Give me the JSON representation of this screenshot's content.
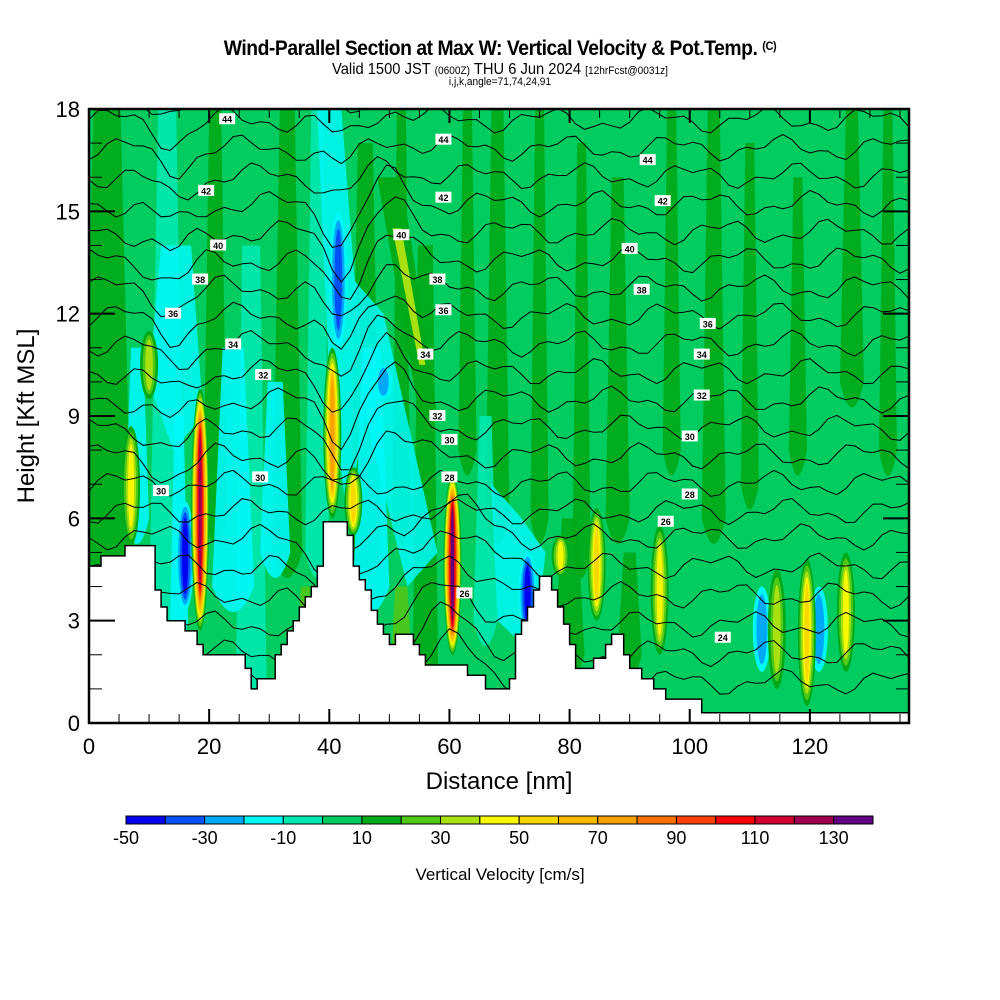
{
  "header": {
    "title": "Wind-Parallel Section at Max W: Vertical Velocity & Pot.Temp.",
    "copyright": "(C)",
    "valid_prefix": "Valid 1500 JST",
    "valid_utc": "(0600Z)",
    "valid_date": "THU 6 Jun 2024",
    "forecast": "[12hrFcst@0031z]",
    "indices": "i,j,k,angle=71,74,24,91"
  },
  "chart_data": {
    "type": "heatmap",
    "title": "Wind-Parallel Section at Max W: Vertical Velocity & Pot.Temp.",
    "xlabel": "Distance [nm]",
    "ylabel": "Height [Kft MSL]",
    "xlim": [
      0,
      136.5
    ],
    "ylim": [
      0,
      18
    ],
    "x_ticks": [
      "0",
      "20",
      "40",
      "60",
      "80",
      "100",
      "120"
    ],
    "x_tick_values": [
      0,
      20,
      40,
      60,
      80,
      100,
      120
    ],
    "y_ticks": [
      "0",
      "3",
      "6",
      "9",
      "12",
      "15",
      "18"
    ],
    "y_tick_values": [
      0,
      3,
      6,
      9,
      12,
      15,
      18
    ],
    "colorbar": {
      "title": "Vertical Velocity [cm/s]",
      "bounds": [
        -50,
        140
      ],
      "step": 10,
      "tick_labels": [
        "-50",
        "-30",
        "-10",
        "10",
        "30",
        "50",
        "70",
        "90",
        "110",
        "130"
      ],
      "tick_values": [
        -50,
        -30,
        -10,
        10,
        30,
        50,
        70,
        90,
        110,
        130
      ],
      "colors": [
        "#0000f0",
        "#0050f8",
        "#00a8f8",
        "#00f8f8",
        "#00e8b0",
        "#00cc60",
        "#00aa18",
        "#50c818",
        "#a8e010",
        "#f8f800",
        "#f8d800",
        "#f8b800",
        "#f8a000",
        "#f87000",
        "#f84000",
        "#f80000",
        "#d00030",
        "#a00050",
        "#600080"
      ]
    },
    "terrain_kft": [
      [
        0,
        4.6
      ],
      [
        2,
        4.6
      ],
      [
        2,
        4.9
      ],
      [
        6,
        4.9
      ],
      [
        6,
        5.2
      ],
      [
        11,
        5.2
      ],
      [
        11,
        3.9
      ],
      [
        12,
        3.9
      ],
      [
        12,
        3.4
      ],
      [
        13,
        3.4
      ],
      [
        13,
        3.0
      ],
      [
        16,
        3.0
      ],
      [
        16,
        2.7
      ],
      [
        18,
        2.7
      ],
      [
        18,
        2.3
      ],
      [
        19,
        2.3
      ],
      [
        19,
        2.0
      ],
      [
        26,
        2.0
      ],
      [
        26,
        1.6
      ],
      [
        27,
        1.6
      ],
      [
        27,
        1.0
      ],
      [
        28,
        1.0
      ],
      [
        28,
        1.3
      ],
      [
        31,
        1.3
      ],
      [
        31,
        2.0
      ],
      [
        32,
        2.0
      ],
      [
        32,
        2.3
      ],
      [
        33,
        2.3
      ],
      [
        33,
        2.7
      ],
      [
        34,
        2.7
      ],
      [
        34,
        3.0
      ],
      [
        35,
        3.0
      ],
      [
        35,
        3.4
      ],
      [
        36,
        3.4
      ],
      [
        36,
        3.7
      ],
      [
        37,
        3.7
      ],
      [
        37,
        4.0
      ],
      [
        38,
        4.0
      ],
      [
        38,
        4.6
      ],
      [
        39,
        4.6
      ],
      [
        39,
        5.9
      ],
      [
        43,
        5.9
      ],
      [
        43,
        5.5
      ],
      [
        44,
        5.5
      ],
      [
        44,
        4.6
      ],
      [
        45,
        4.6
      ],
      [
        45,
        4.2
      ],
      [
        46,
        4.2
      ],
      [
        46,
        3.9
      ],
      [
        47,
        3.9
      ],
      [
        47,
        3.3
      ],
      [
        48,
        3.3
      ],
      [
        48,
        2.9
      ],
      [
        49,
        2.9
      ],
      [
        49,
        2.6
      ],
      [
        50,
        2.6
      ],
      [
        50,
        2.3
      ],
      [
        51,
        2.3
      ],
      [
        51,
        2.6
      ],
      [
        54,
        2.6
      ],
      [
        54,
        2.3
      ],
      [
        55,
        2.3
      ],
      [
        55,
        2.0
      ],
      [
        56,
        2.0
      ],
      [
        56,
        1.7
      ],
      [
        63,
        1.7
      ],
      [
        63,
        1.4
      ],
      [
        66,
        1.4
      ],
      [
        66,
        1.0
      ],
      [
        70,
        1.0
      ],
      [
        70,
        1.3
      ],
      [
        71,
        1.3
      ],
      [
        71,
        2.6
      ],
      [
        72,
        2.6
      ],
      [
        72,
        3.0
      ],
      [
        73,
        3.0
      ],
      [
        73,
        3.4
      ],
      [
        74,
        3.4
      ],
      [
        74,
        3.9
      ],
      [
        75,
        3.9
      ],
      [
        75,
        4.3
      ],
      [
        77,
        4.3
      ],
      [
        77,
        3.9
      ],
      [
        78,
        3.9
      ],
      [
        78,
        3.4
      ],
      [
        79,
        3.4
      ],
      [
        79,
        2.9
      ],
      [
        80,
        2.9
      ],
      [
        80,
        2.3
      ],
      [
        81,
        2.3
      ],
      [
        81,
        1.6
      ],
      [
        84,
        1.6
      ],
      [
        84,
        1.9
      ],
      [
        86,
        1.9
      ],
      [
        86,
        2.3
      ],
      [
        87,
        2.3
      ],
      [
        87,
        2.6
      ],
      [
        89,
        2.6
      ],
      [
        89,
        2.0
      ],
      [
        90,
        2.0
      ],
      [
        90,
        1.6
      ],
      [
        92,
        1.6
      ],
      [
        92,
        1.3
      ],
      [
        94,
        1.3
      ],
      [
        94,
        1.0
      ],
      [
        96,
        1.0
      ],
      [
        96,
        0.7
      ],
      [
        102,
        0.7
      ],
      [
        102,
        0.3
      ],
      [
        136.5,
        0.3
      ]
    ],
    "updraft_cores": [
      {
        "x": 7,
        "ymin": 5.2,
        "ymax": 8.7,
        "w_max": 45
      },
      {
        "x": 10,
        "ymin": 9.5,
        "ymax": 11.5,
        "w_max": 35
      },
      {
        "x": 18.5,
        "ymin": 2.7,
        "ymax": 9.8,
        "w_max": 125
      },
      {
        "x": 40.5,
        "ymin": 6,
        "ymax": 11,
        "w_max": 75
      },
      {
        "x": 44,
        "ymin": 5.5,
        "ymax": 7.5,
        "w_max": 55
      },
      {
        "x": 60.5,
        "ymin": 2,
        "ymax": 7.3,
        "w_max": 135
      },
      {
        "x": 78.5,
        "ymin": 4.3,
        "ymax": 5.5,
        "w_max": 45
      },
      {
        "x": 84.5,
        "ymin": 3,
        "ymax": 6.3,
        "w_max": 60
      },
      {
        "x": 95,
        "ymin": 2,
        "ymax": 5.8,
        "w_max": 45
      },
      {
        "x": 114.5,
        "ymin": 1,
        "ymax": 4.5,
        "w_max": 40
      },
      {
        "x": 119.5,
        "ymin": 0.5,
        "ymax": 4.8,
        "w_max": 55
      },
      {
        "x": 126,
        "ymin": 1.5,
        "ymax": 5.0,
        "w_max": 45
      }
    ],
    "downdraft_cores": [
      {
        "x": 16,
        "ymin": 3.3,
        "ymax": 6.5,
        "w_min": -45
      },
      {
        "x": 41.5,
        "ymin": 11,
        "ymax": 15,
        "w_min": -40
      },
      {
        "x": 49,
        "ymin": 9.5,
        "ymax": 10.5,
        "w_min": -30
      },
      {
        "x": 73,
        "ymin": 2.5,
        "ymax": 5.0,
        "w_min": -45
      },
      {
        "x": 112,
        "ymin": 1.5,
        "ymax": 4.0,
        "w_min": -30
      },
      {
        "x": 121.5,
        "ymin": 1.5,
        "ymax": 4.0,
        "w_min": -25
      }
    ],
    "theta_contours": {
      "units": "C",
      "interval": 1,
      "levels": [
        24,
        25,
        26,
        27,
        28,
        29,
        30,
        31,
        32,
        33,
        34,
        35,
        36,
        37,
        38,
        39,
        40,
        41,
        42,
        43,
        44,
        45
      ],
      "labels": [
        {
          "text": "44",
          "x": 23,
          "y": 17.7
        },
        {
          "text": "44",
          "x": 59,
          "y": 17.1
        },
        {
          "text": "44",
          "x": 93,
          "y": 16.5
        },
        {
          "text": "42",
          "x": 19.5,
          "y": 15.6
        },
        {
          "text": "42",
          "x": 59,
          "y": 15.4
        },
        {
          "text": "42",
          "x": 95.5,
          "y": 15.3
        },
        {
          "text": "40",
          "x": 21.5,
          "y": 14.0
        },
        {
          "text": "40",
          "x": 52,
          "y": 14.3
        },
        {
          "text": "40",
          "x": 90,
          "y": 13.9
        },
        {
          "text": "38",
          "x": 18.5,
          "y": 13.0
        },
        {
          "text": "38",
          "x": 58,
          "y": 13.0
        },
        {
          "text": "38",
          "x": 92,
          "y": 12.7
        },
        {
          "text": "36",
          "x": 14,
          "y": 12.0
        },
        {
          "text": "36",
          "x": 59,
          "y": 12.1
        },
        {
          "text": "36",
          "x": 103,
          "y": 11.7
        },
        {
          "text": "34",
          "x": 24,
          "y": 11.1
        },
        {
          "text": "34",
          "x": 56,
          "y": 10.8
        },
        {
          "text": "34",
          "x": 102,
          "y": 10.8
        },
        {
          "text": "32",
          "x": 29,
          "y": 10.2
        },
        {
          "text": "32",
          "x": 58,
          "y": 9.0
        },
        {
          "text": "32",
          "x": 102,
          "y": 9.6
        },
        {
          "text": "30",
          "x": 12,
          "y": 6.8
        },
        {
          "text": "30",
          "x": 28.5,
          "y": 7.2
        },
        {
          "text": "30",
          "x": 60,
          "y": 8.3
        },
        {
          "text": "30",
          "x": 100,
          "y": 8.4
        },
        {
          "text": "28",
          "x": 60,
          "y": 7.2
        },
        {
          "text": "28",
          "x": 100,
          "y": 6.7
        },
        {
          "text": "26",
          "x": 96,
          "y": 5.9
        },
        {
          "text": "26",
          "x": 62.5,
          "y": 3.8
        },
        {
          "text": "24",
          "x": 105.5,
          "y": 2.5
        }
      ]
    }
  }
}
